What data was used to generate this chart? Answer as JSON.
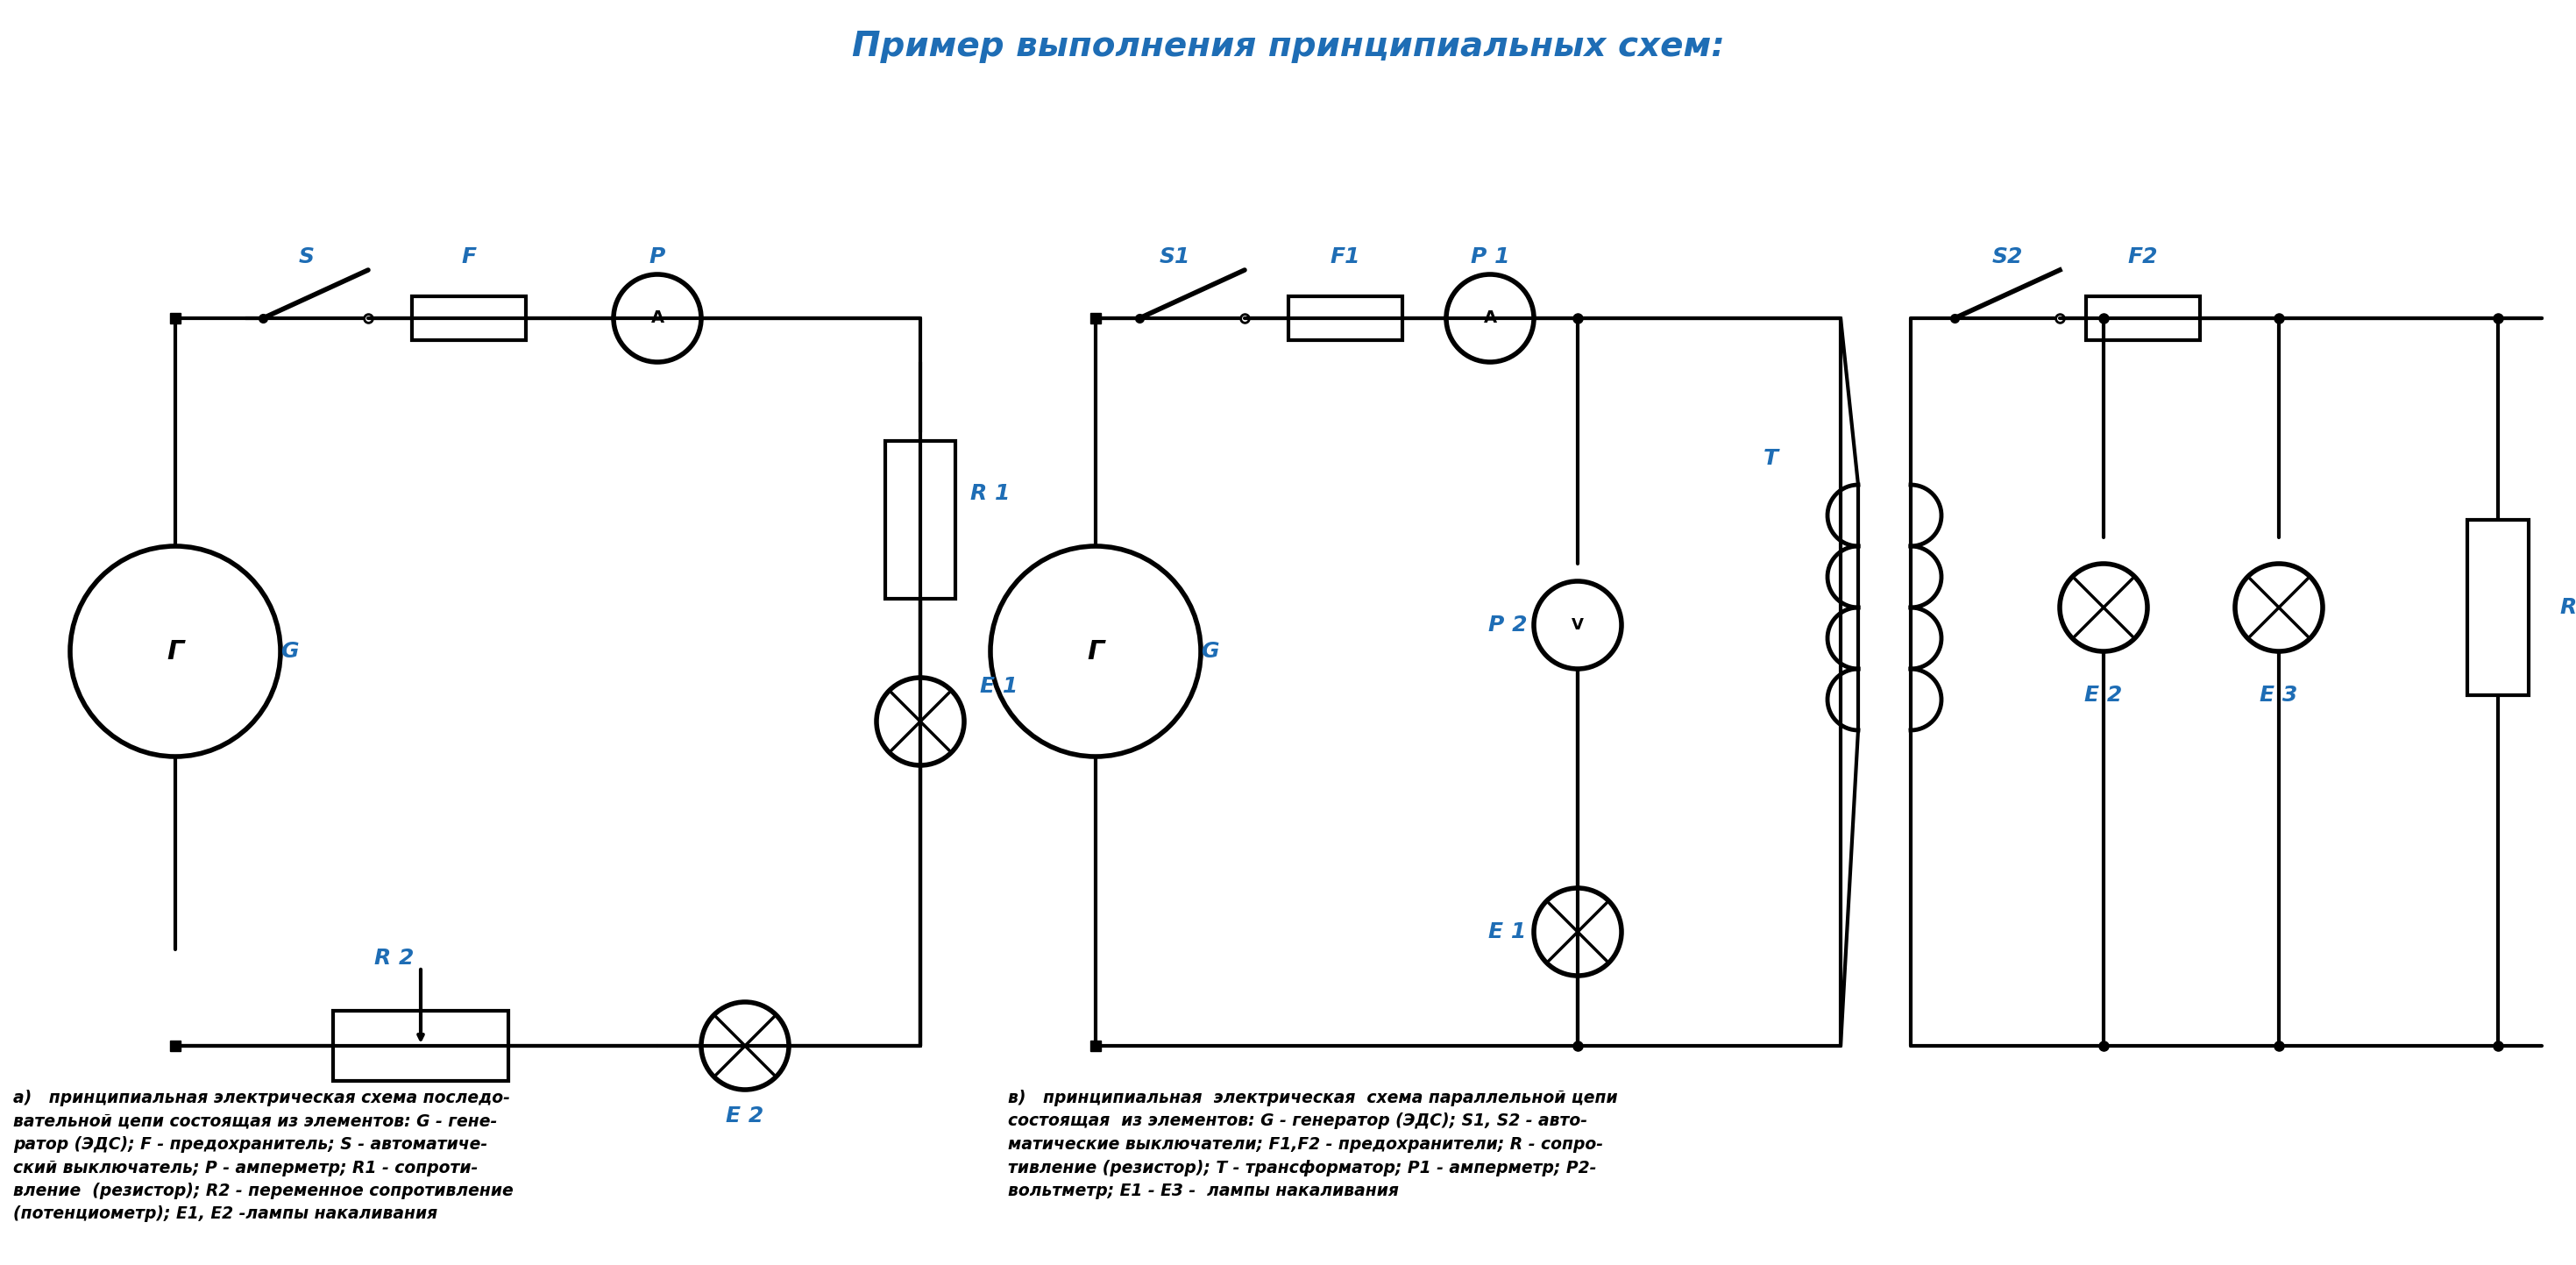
{
  "title": "Пример выполнения принципиальных схем:",
  "title_color": "#1E6DB5",
  "title_fontsize": 28,
  "bg_color": "#ffffff",
  "circuit_color": "#000000",
  "label_color": "#1E6DB5",
  "label_fontsize": 18,
  "caption_a_lines": [
    "а)   принципиальная электрическая схема последо-",
    "вательной цепи состоящая из элементов: ",
    "ратор (ЭДС); ",
    "ский выключатель; ",
    "вление (резистор); ",
    "(потенциометр); "
  ],
  "caption_b_lines": [
    "в)   принципиальная  электрическая  схема параллельной цепи",
    "состоящая  из элементов: ",
    "матические выключатели; ",
    "тивление (резистор); ",
    "вольтметр; "
  ]
}
